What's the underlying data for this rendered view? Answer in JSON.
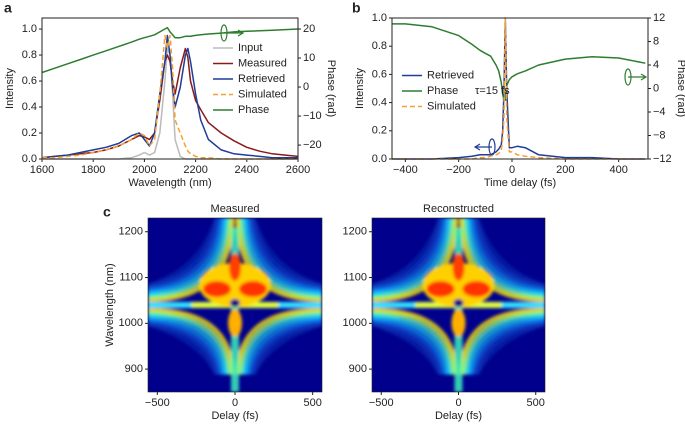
{
  "chart_data": [
    {
      "type": "line",
      "panel_label": "a",
      "xlabel": "Wavelength (nm)",
      "ylabel": "Intensity",
      "y2label": "Phase (rad)",
      "x": [
        1600,
        1650,
        1700,
        1750,
        1800,
        1850,
        1900,
        1950,
        1980,
        2000,
        2020,
        2040,
        2060,
        2080,
        2090,
        2100,
        2110,
        2120,
        2140,
        2160,
        2170,
        2180,
        2200,
        2220,
        2250,
        2300,
        2350,
        2400,
        2450,
        2500,
        2550,
        2600
      ],
      "series": [
        {
          "name": "Input",
          "color": "#bbbbbb",
          "values": [
            0,
            0,
            0,
            0,
            0,
            0,
            0,
            0.01,
            0.03,
            0.05,
            0.03,
            0.05,
            0.2,
            0.6,
            0.85,
            0.8,
            0.5,
            0.15,
            0.02,
            0,
            0,
            0,
            0,
            0,
            0,
            0,
            0,
            0,
            0,
            0,
            0,
            0
          ]
        },
        {
          "name": "Measured",
          "color": "#8b1a1a",
          "values": [
            0.01,
            0.02,
            0.03,
            0.04,
            0.05,
            0.07,
            0.1,
            0.15,
            0.18,
            0.17,
            0.15,
            0.2,
            0.45,
            0.75,
            0.8,
            0.75,
            0.6,
            0.5,
            0.7,
            0.85,
            0.78,
            0.6,
            0.45,
            0.38,
            0.28,
            0.2,
            0.14,
            0.09,
            0.06,
            0.04,
            0.03,
            0.02
          ]
        },
        {
          "name": "Retrieved",
          "color": "#1f3d99",
          "values": [
            0.01,
            0.02,
            0.03,
            0.05,
            0.07,
            0.09,
            0.12,
            0.18,
            0.2,
            0.15,
            0.1,
            0.2,
            0.5,
            0.75,
            0.95,
            0.8,
            0.55,
            0.4,
            0.55,
            0.8,
            0.85,
            0.75,
            0.5,
            0.3,
            0.15,
            0.07,
            0.04,
            0.03,
            0.02,
            0.01,
            0.01,
            0.01
          ]
        },
        {
          "name": "Simulated",
          "color": "#f5a030",
          "dashed": true,
          "values": [
            0.01,
            0.01,
            0.02,
            0.03,
            0.05,
            0.07,
            0.1,
            0.15,
            0.2,
            0.18,
            0.1,
            0.15,
            0.5,
            0.95,
            0.85,
            0.95,
            0.7,
            0.3,
            0.2,
            0.1,
            0.06,
            0.04,
            0.02,
            0.01,
            0.01,
            0,
            0,
            0,
            0,
            0,
            0,
            0
          ]
        },
        {
          "name": "Phase",
          "color": "#2e7d2e",
          "axis": "y2",
          "values": [
            5,
            6.5,
            8,
            9.5,
            11,
            12.5,
            14,
            15.5,
            16.5,
            17,
            17.5,
            18,
            19,
            20,
            20.5,
            19,
            18,
            17,
            17,
            17.5,
            17.5,
            17.5,
            17.8,
            18,
            18.3,
            18.6,
            19,
            19.2,
            19.4,
            19.6,
            19.8,
            20
          ]
        }
      ],
      "xlim": [
        1600,
        2600
      ],
      "xticks": [
        1600,
        1800,
        2000,
        2200,
        2400,
        2600
      ],
      "ylim": [
        0,
        1.085
      ],
      "yticks": [
        {
          "value": 0,
          "label": "0.0"
        },
        {
          "value": 0.2,
          "label": "0.2"
        },
        {
          "value": 0.4,
          "label": "0.4"
        },
        {
          "value": 0.6,
          "label": "0.6"
        },
        {
          "value": 0.8,
          "label": "0.8"
        },
        {
          "value": 1,
          "label": "1.0"
        }
      ],
      "y2lim": [
        -24.8,
        23.8
      ],
      "y2ticks": [
        20,
        10,
        0,
        {
          "value": -10,
          "label": "−10"
        },
        {
          "value": -20,
          "label": "−20"
        }
      ],
      "legend_loc": "upper right"
    },
    {
      "type": "line",
      "panel_label": "b",
      "xlabel": "Time delay (fs)",
      "ylabel": "Intensity",
      "y2label": "Phase (rad)",
      "annotation": "τ=15 fs",
      "x": [
        -450,
        -400,
        -300,
        -200,
        -150,
        -120,
        -100,
        -80,
        -60,
        -50,
        -40,
        -35,
        -30,
        -25,
        -20,
        -10,
        0,
        20,
        50,
        100,
        200,
        300,
        400,
        500
      ],
      "series": [
        {
          "name": "Retrieved",
          "color": "#1f3d99",
          "values": [
            0,
            0,
            0,
            0.01,
            0.02,
            0.03,
            0.03,
            0.03,
            0.05,
            0.07,
            0.1,
            0.2,
            0.5,
            1.0,
            0.5,
            0.08,
            0.08,
            0.09,
            0.08,
            0.03,
            0.01,
            0.01,
            0,
            0
          ]
        },
        {
          "name": "Phase",
          "color": "#2e7d2e",
          "axis": "y2",
          "values": [
            11,
            11,
            10.5,
            9,
            7.5,
            6.5,
            6,
            5.5,
            4,
            3,
            1,
            -1,
            -2,
            -2,
            0.5,
            1.5,
            2,
            2.5,
            3,
            4,
            5,
            5.4,
            5.2,
            4.3
          ]
        },
        {
          "name": "Simulated",
          "color": "#f5a030",
          "dashed": true,
          "values": [
            0,
            0,
            0,
            0,
            0,
            0.01,
            0.01,
            0.02,
            0.03,
            0.04,
            0.06,
            0.15,
            0.3,
            1.0,
            0.3,
            0.05,
            0.05,
            0.03,
            0.02,
            0.01,
            0,
            0,
            0,
            0
          ]
        }
      ],
      "xlim": [
        -450,
        510
      ],
      "xticks": [
        {
          "value": -400,
          "label": "−400"
        },
        {
          "value": -200,
          "label": "−200"
        },
        0,
        200,
        400
      ],
      "ylim": [
        0,
        1
      ],
      "yticks": [
        {
          "value": 0,
          "label": "0.0"
        },
        {
          "value": 0.2,
          "label": "0.2"
        },
        {
          "value": 0.4,
          "label": "0.4"
        },
        {
          "value": 0.6,
          "label": "0.6"
        },
        {
          "value": 0.8,
          "label": "0.8"
        },
        {
          "value": 1,
          "label": "1.0"
        }
      ],
      "y2lim": [
        -12,
        12
      ],
      "y2ticks": [
        12,
        8,
        4,
        0,
        {
          "value": -4,
          "label": "−4"
        },
        {
          "value": -8,
          "label": "−8"
        },
        {
          "value": -12,
          "label": "−12"
        }
      ],
      "legend_loc": "center left"
    },
    {
      "type": "heatmap",
      "panel_label": "c",
      "title": "Measured",
      "xlabel": "Delay (fs)",
      "ylabel": "Wavelength (nm)",
      "xlim": [
        -560,
        560
      ],
      "xticks": [
        {
          "value": -500,
          "label": "−500"
        },
        0,
        500
      ],
      "ylim": [
        850,
        1230
      ],
      "yticks": [
        900,
        1000,
        1100,
        1200
      ]
    },
    {
      "type": "heatmap",
      "title": "Reconstructed",
      "xlabel": "Delay (fs)",
      "xlim": [
        -560,
        560
      ],
      "xticks": [
        {
          "value": -500,
          "label": "−500"
        },
        0,
        500
      ],
      "ylim": [
        850,
        1230
      ],
      "yticks": [
        900,
        1000,
        1100,
        1200
      ]
    }
  ]
}
